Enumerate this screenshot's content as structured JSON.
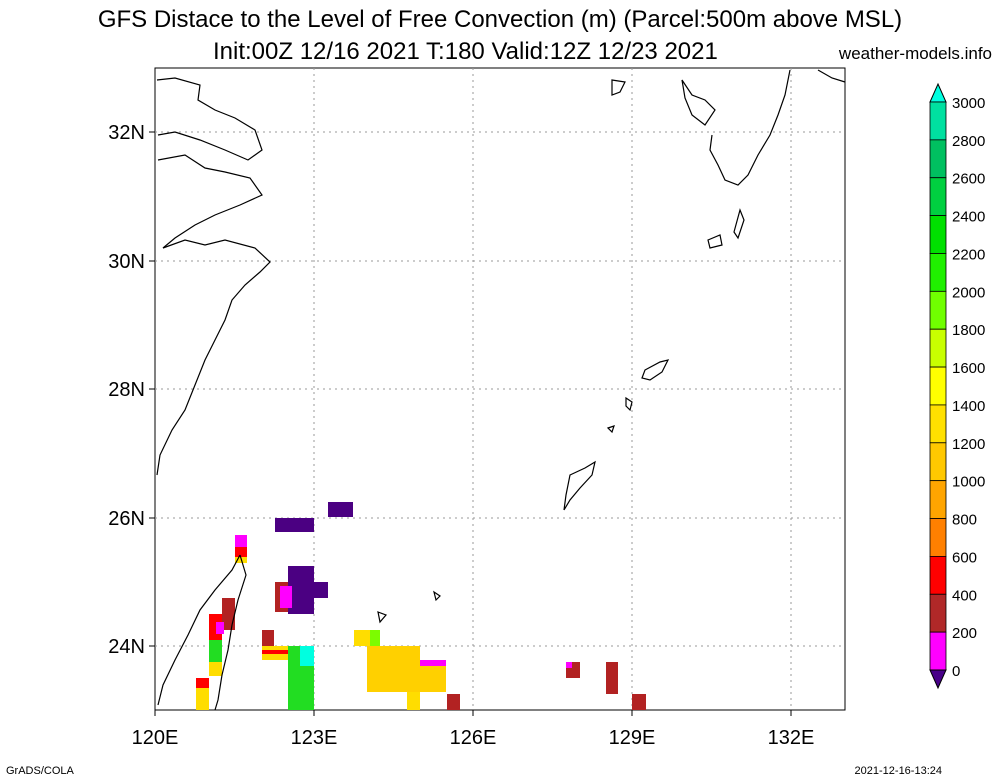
{
  "header": {
    "title_line1": "GFS Distace to the Level of Free Convection (m) (Parcel:500m above MSL)",
    "title_line2": "Init:00Z 12/16 2021 T:180 Valid:12Z 12/23 2021",
    "site": "weather-models.info"
  },
  "footer": {
    "left": "GrADS/COLA",
    "right": "2021-12-16-13:24"
  },
  "map": {
    "lon_labels": [
      "120E",
      "123E",
      "126E",
      "129E",
      "132E"
    ],
    "lat_labels": [
      "32N",
      "30N",
      "28N",
      "26N",
      "24N"
    ]
  },
  "colorbar": {
    "labels": [
      "3000",
      "2800",
      "2600",
      "2400",
      "2200",
      "2000",
      "1800",
      "1600",
      "1400",
      "1200",
      "1000",
      "800",
      "600",
      "400",
      "200",
      "0"
    ],
    "colors": [
      "#00ffe0",
      "#00e0a0",
      "#00c060",
      "#00d040",
      "#00e000",
      "#20f000",
      "#70ff00",
      "#c8ff00",
      "#ffff00",
      "#ffe000",
      "#ffc800",
      "#ffa500",
      "#ff8000",
      "#ff0000",
      "#b02828",
      "#ff00ff",
      "#480088"
    ]
  },
  "field_legend": {
    "purple": "#4b0082",
    "magenta": "#ff00ff",
    "brown": "#b22222",
    "red": "#ff0000",
    "orange": "#ff8c00",
    "yellow": "#ffdd00",
    "green": "#22dd22",
    "lime": "#7cfc00"
  }
}
